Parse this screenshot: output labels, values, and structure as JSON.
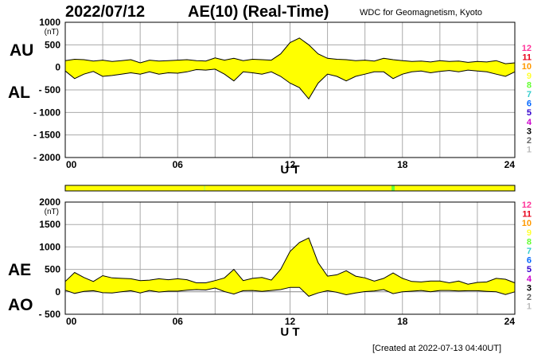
{
  "header": {
    "date": "2022/07/12",
    "title": "AE(10) (Real-Time)",
    "source": "WDC for Geomagnetism, Kyoto"
  },
  "footer": {
    "created": "[Created at 2022-07-13 04:40UT]"
  },
  "station_counts": [
    "12",
    "11",
    "10",
    "9",
    "8",
    "7",
    "6",
    "5",
    "4",
    "3",
    "2",
    "1"
  ],
  "station_colors": [
    "#ff3399",
    "#e8001a",
    "#ff9900",
    "#ffff33",
    "#66ff33",
    "#33cccc",
    "#0066ff",
    "#3300cc",
    "#cc00cc",
    "#000000",
    "#666666",
    "#bbbbbb"
  ],
  "fill_color": "#ffff00",
  "chart_data": [
    {
      "type": "area",
      "panel": "AU/AL",
      "series_labels": [
        "AU",
        "AL"
      ],
      "xlabel": "U T",
      "ylabel_unit": "(nT)",
      "xlim": [
        0,
        24
      ],
      "ylim": [
        -2000,
        1000
      ],
      "xticks": [
        "00",
        "06",
        "12",
        "18",
        "24"
      ],
      "yticks": [
        "1000",
        "500",
        "0",
        "- 500",
        "- 1000",
        "- 1500",
        "- 2000"
      ],
      "x": [
        0,
        0.5,
        1,
        1.5,
        2,
        2.5,
        3,
        3.5,
        4,
        4.5,
        5,
        5.5,
        6,
        6.5,
        7,
        7.5,
        8,
        8.5,
        9,
        9.5,
        10,
        10.5,
        11,
        11.5,
        12,
        12.5,
        13,
        13.5,
        14,
        14.5,
        15,
        15.5,
        16,
        16.5,
        17,
        17.5,
        18,
        18.5,
        19,
        19.5,
        20,
        20.5,
        21,
        21.5,
        22,
        22.5,
        23,
        23.5,
        24
      ],
      "series": [
        {
          "name": "AU",
          "values": [
            150,
            180,
            170,
            140,
            160,
            130,
            150,
            170,
            100,
            160,
            140,
            150,
            160,
            170,
            150,
            140,
            210,
            160,
            200,
            150,
            180,
            170,
            160,
            300,
            550,
            650,
            500,
            300,
            200,
            180,
            170,
            150,
            160,
            140,
            200,
            170,
            150,
            130,
            140,
            120,
            150,
            130,
            140,
            110,
            130,
            120,
            150,
            80,
            100
          ]
        },
        {
          "name": "AL",
          "values": [
            -80,
            -250,
            -150,
            -90,
            -200,
            -180,
            -150,
            -120,
            -150,
            -100,
            -150,
            -120,
            -130,
            -100,
            -50,
            -60,
            -40,
            -150,
            -300,
            -100,
            -120,
            -150,
            -100,
            -200,
            -350,
            -450,
            -700,
            -350,
            -150,
            -200,
            -300,
            -200,
            -150,
            -100,
            -100,
            -250,
            -150,
            -100,
            -80,
            -120,
            -90,
            -70,
            -100,
            -60,
            -80,
            -100,
            -150,
            -200,
            -100
          ]
        }
      ]
    },
    {
      "type": "area",
      "panel": "AE/AO",
      "series_labels": [
        "AE",
        "AO"
      ],
      "xlabel": "U T",
      "ylabel_unit": "(nT)",
      "xlim": [
        0,
        24
      ],
      "ylim": [
        -500,
        2000
      ],
      "xticks": [
        "00",
        "06",
        "12",
        "18",
        "24"
      ],
      "yticks": [
        "2000",
        "1500",
        "1000",
        "500",
        "0",
        "- 500"
      ],
      "x": [
        0,
        0.5,
        1,
        1.5,
        2,
        2.5,
        3,
        3.5,
        4,
        4.5,
        5,
        5.5,
        6,
        6.5,
        7,
        7.5,
        8,
        8.5,
        9,
        9.5,
        10,
        10.5,
        11,
        11.5,
        12,
        12.5,
        13,
        13.5,
        14,
        14.5,
        15,
        15.5,
        16,
        16.5,
        17,
        17.5,
        18,
        18.5,
        19,
        19.5,
        20,
        20.5,
        21,
        21.5,
        22,
        22.5,
        23,
        23.5,
        24
      ],
      "series": [
        {
          "name": "AE",
          "values": [
            230,
            430,
            320,
            230,
            360,
            310,
            300,
            290,
            250,
            260,
            290,
            270,
            290,
            270,
            200,
            200,
            250,
            310,
            500,
            250,
            300,
            320,
            260,
            500,
            900,
            1100,
            1200,
            650,
            350,
            380,
            470,
            350,
            310,
            240,
            300,
            420,
            300,
            230,
            220,
            240,
            240,
            200,
            240,
            170,
            210,
            220,
            300,
            280,
            200
          ]
        },
        {
          "name": "AO",
          "values": [
            35,
            -35,
            10,
            25,
            -20,
            -25,
            0,
            25,
            -25,
            30,
            -5,
            15,
            15,
            35,
            50,
            40,
            85,
            5,
            -50,
            25,
            30,
            10,
            30,
            50,
            100,
            100,
            -100,
            -25,
            25,
            -10,
            -65,
            -25,
            5,
            20,
            50,
            -40,
            0,
            15,
            30,
            0,
            30,
            30,
            20,
            25,
            25,
            10,
            0,
            -60,
            0
          ]
        }
      ]
    }
  ]
}
